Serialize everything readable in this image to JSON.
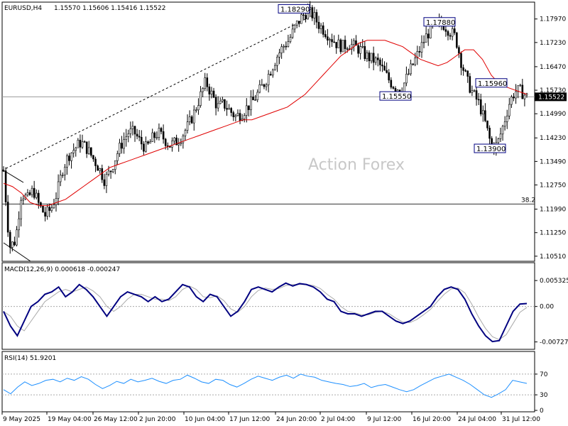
{
  "header": {
    "symbol": "EURUSD,H4",
    "ohlc": "1.15570 1.15606 1.15416 1.15522"
  },
  "watermark": "Action Forex",
  "colors": {
    "candle": "#000000",
    "ma": "#e00000",
    "macd": "#000080",
    "signal": "#aaaaaa",
    "rsi": "#1e90ff",
    "level_box_border": "#000080"
  },
  "chart_data": [
    {
      "type": "candlestick",
      "title": "EURUSD,H4",
      "price_axis_ticks": [
        "1.17970",
        "1.17230",
        "1.16470",
        "1.15730",
        "1.14990",
        "1.14230",
        "1.13490",
        "1.12750",
        "1.11990",
        "1.11250",
        "1.10510"
      ],
      "ylim": [
        1.1035,
        1.185
      ],
      "current_price": "1.15522",
      "close_path": [
        1.132,
        1.108,
        1.11,
        1.125,
        1.123,
        1.126,
        1.121,
        1.118,
        1.12,
        1.125,
        1.133,
        1.137,
        1.139,
        1.141,
        1.139,
        1.136,
        1.133,
        1.129,
        1.132,
        1.137,
        1.141,
        1.144,
        1.144,
        1.141,
        1.139,
        1.142,
        1.144,
        1.142,
        1.14,
        1.141,
        1.143,
        1.146,
        1.15,
        1.155,
        1.16,
        1.156,
        1.152,
        1.153,
        1.151,
        1.149,
        1.15,
        1.152,
        1.154,
        1.157,
        1.16,
        1.164,
        1.168,
        1.171,
        1.173,
        1.177,
        1.18,
        1.182,
        1.181,
        1.178,
        1.176,
        1.174,
        1.172,
        1.171,
        1.172,
        1.171,
        1.17,
        1.168,
        1.167,
        1.166,
        1.163,
        1.16,
        1.158,
        1.158,
        1.162,
        1.166,
        1.17,
        1.174,
        1.177,
        1.178,
        1.178,
        1.176,
        1.174,
        1.166,
        1.16,
        1.156,
        1.153,
        1.147,
        1.14,
        1.14,
        1.146,
        1.153,
        1.157,
        1.157,
        1.1552
      ],
      "moving_average_path": [
        1.128,
        1.127,
        1.125,
        1.122,
        1.121,
        1.121,
        1.122,
        1.123,
        1.125,
        1.127,
        1.129,
        1.131,
        1.133,
        1.134,
        1.135,
        1.136,
        1.137,
        1.138,
        1.139,
        1.14,
        1.141,
        1.142,
        1.143,
        1.144,
        1.145,
        1.146,
        1.147,
        1.148,
        1.148,
        1.149,
        1.15,
        1.151,
        1.152,
        1.154,
        1.156,
        1.159,
        1.162,
        1.165,
        1.168,
        1.17,
        1.172,
        1.173,
        1.173,
        1.173,
        1.172,
        1.171,
        1.169,
        1.167,
        1.166,
        1.165,
        1.166,
        1.168,
        1.17,
        1.17,
        1.167,
        1.162,
        1.159,
        1.158,
        1.157,
        1.156
      ],
      "fib_level": {
        "label": "38.2",
        "value": 1.1215
      },
      "annotations": [
        {
          "label": "1.18290",
          "value": 1.1829
        },
        {
          "label": "1.17880",
          "value": 1.1788
        },
        {
          "label": "1.15550",
          "value": 1.1555
        },
        {
          "label": "1.15960",
          "value": 1.1596
        },
        {
          "label": "1.13900",
          "value": 1.139
        }
      ]
    },
    {
      "type": "line",
      "title": "MACD(12,26,9) 0.000618 -0.000247",
      "axis_ticks": [
        "0.005325",
        "0.00",
        "-0.007273"
      ],
      "ylim": [
        -0.0085,
        0.0068
      ],
      "macd_path": [
        -0.001,
        -0.004,
        -0.006,
        -0.003,
        0.0,
        0.001,
        0.0025,
        0.003,
        0.004,
        0.002,
        0.003,
        0.0045,
        0.0035,
        0.002,
        0.0,
        -0.002,
        0.0,
        0.002,
        0.003,
        0.0025,
        0.002,
        0.001,
        0.002,
        0.001,
        0.0015,
        0.003,
        0.0045,
        0.004,
        0.002,
        0.001,
        0.0025,
        0.002,
        0.0,
        -0.002,
        -0.001,
        0.001,
        0.0035,
        0.004,
        0.0035,
        0.003,
        0.004,
        0.0048,
        0.0042,
        0.0047,
        0.0045,
        0.004,
        0.003,
        0.0015,
        0.001,
        -0.001,
        -0.0015,
        -0.0015,
        -0.002,
        -0.0015,
        -0.001,
        -0.001,
        -0.002,
        -0.003,
        -0.0035,
        -0.003,
        -0.002,
        -0.001,
        0.0,
        0.002,
        0.0035,
        0.004,
        0.0035,
        0.0015,
        -0.0015,
        -0.004,
        -0.006,
        -0.0072,
        -0.007,
        -0.004,
        -0.001,
        0.0005,
        0.0006
      ],
      "signal_path": [
        -0.001,
        -0.002,
        -0.004,
        -0.005,
        -0.003,
        -0.001,
        0.001,
        0.002,
        0.003,
        0.0035,
        0.003,
        0.0035,
        0.004,
        0.0032,
        0.002,
        0.0,
        -0.001,
        0.0,
        0.0015,
        0.0025,
        0.0025,
        0.002,
        0.0015,
        0.0015,
        0.0012,
        0.002,
        0.0035,
        0.0042,
        0.0035,
        0.002,
        0.0018,
        0.0022,
        0.0012,
        -0.0005,
        -0.0012,
        0.0,
        0.002,
        0.0033,
        0.0038,
        0.0035,
        0.0037,
        0.0043,
        0.0045,
        0.0045,
        0.0045,
        0.0043,
        0.0037,
        0.0025,
        0.0015,
        0.0,
        -0.001,
        -0.0013,
        -0.0017,
        -0.0017,
        -0.0012,
        -0.001,
        -0.0015,
        -0.0024,
        -0.0032,
        -0.0033,
        -0.0027,
        -0.0017,
        -0.0006,
        0.001,
        0.0025,
        0.0036,
        0.0038,
        0.0028,
        0.0005,
        -0.0022,
        -0.0045,
        -0.0062,
        -0.0068,
        -0.0058,
        -0.0035,
        -0.0012,
        -0.0002
      ]
    },
    {
      "type": "line",
      "title": "RSI(14) 51.9201",
      "axis_ticks": [
        "70",
        "30",
        "0"
      ],
      "levels": [
        70,
        30
      ],
      "ylim": [
        0,
        100
      ],
      "rsi_path": [
        40,
        32,
        45,
        55,
        48,
        52,
        58,
        60,
        55,
        62,
        58,
        65,
        60,
        50,
        42,
        48,
        56,
        52,
        60,
        55,
        58,
        62,
        56,
        52,
        58,
        60,
        68,
        62,
        55,
        52,
        60,
        58,
        50,
        45,
        52,
        60,
        66,
        62,
        58,
        64,
        68,
        62,
        70,
        66,
        64,
        58,
        55,
        52,
        50,
        46,
        48,
        52,
        44,
        48,
        50,
        45,
        40,
        36,
        40,
        48,
        55,
        62,
        66,
        70,
        64,
        58,
        50,
        40,
        30,
        25,
        32,
        40,
        58,
        55,
        52
      ]
    }
  ],
  "x_axis_labels": [
    "9 May 2025",
    "19 May 04:00",
    "26 May 12:00",
    "2 Jun 20:00",
    "10 Jun 04:00",
    "17 Jun 12:00",
    "24 Jun 20:00",
    "2 Jul 04:00",
    "9 Jul 12:00",
    "16 Jul 20:00",
    "24 Jul 04:00",
    "31 Jul 12:00"
  ]
}
